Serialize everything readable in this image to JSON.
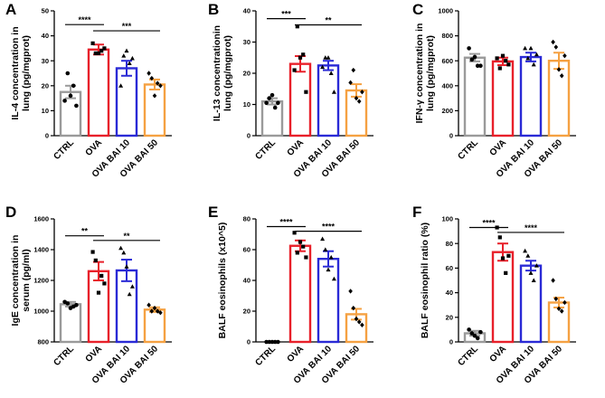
{
  "figure": {
    "categories": [
      "CTRL",
      "OVA",
      "OVA BAI 10",
      "OVA BAI 50"
    ],
    "colors": [
      "#9a9a9a",
      "#e8202a",
      "#2a2ad6",
      "#f5a142"
    ]
  },
  "chart_data": [
    {
      "letter": "A",
      "type": "bar",
      "title": "",
      "ylabel": "IL-4 concentration in lung (pg/mgprot)",
      "ylabel_lines": [
        "IL-4 concentration in",
        "lung (pg/mgprot)"
      ],
      "categories": [
        "CTRL",
        "OVA",
        "OVA BAI 10",
        "OVA BAI 50"
      ],
      "values": [
        17.5,
        34.5,
        27,
        20.5
      ],
      "errors": [
        2.5,
        2,
        3,
        2
      ],
      "points": [
        [
          14,
          25,
          16,
          20,
          12
        ],
        [
          37,
          33,
          33,
          34,
          35
        ],
        [
          20,
          32,
          34,
          29,
          31
        ],
        [
          25,
          23,
          16,
          21,
          20
        ]
      ],
      "yticks": [
        0,
        10,
        20,
        30,
        40,
        50
      ],
      "ylim": [
        0,
        50
      ],
      "significance": [
        {
          "from": 0,
          "to": 1,
          "label": "****",
          "y": 44.5
        },
        {
          "from": 1,
          "to": 3,
          "label": "***",
          "y": 42
        }
      ]
    },
    {
      "letter": "B",
      "type": "bar",
      "title": "",
      "ylabel": "IL-13 concentrationin lung (pg/mgprot)",
      "ylabel_lines": [
        "IL-13 concentrationin",
        "lung (pg/mgprot)"
      ],
      "categories": [
        "CTRL",
        "OVA",
        "OVA BAI 10",
        "OVA BAI 50"
      ],
      "values": [
        11,
        23,
        22.5,
        14.5
      ],
      "errors": [
        1,
        2.5,
        1.5,
        2
      ],
      "points": [
        [
          10.5,
          12,
          13,
          9,
          10.5
        ],
        [
          21,
          35,
          25,
          26,
          14
        ],
        [
          22,
          25,
          25,
          20,
          14
        ],
        [
          17,
          21,
          12,
          11,
          14
        ]
      ],
      "yticks": [
        0,
        10,
        20,
        30,
        40
      ],
      "ylim": [
        0,
        40
      ],
      "significance": [
        {
          "from": 0,
          "to": 1,
          "label": "***",
          "y": 37.5
        },
        {
          "from": 1,
          "to": 3,
          "label": "**",
          "y": 35.5
        }
      ]
    },
    {
      "letter": "C",
      "type": "bar",
      "title": "",
      "ylabel": "IFN-γ concentration in lung (pg/mgprot)",
      "ylabel_lines": [
        "IFN-γ concentration in",
        "lung (pg/mgprot)"
      ],
      "categories": [
        "CTRL",
        "OVA",
        "OVA BAI 10",
        "OVA BAI 50"
      ],
      "values": [
        625,
        595,
        630,
        600
      ],
      "errors": [
        30,
        30,
        35,
        65
      ],
      "points": [
        [
          700,
          610,
          630,
          560,
          560
        ],
        [
          620,
          540,
          640,
          600,
          570
        ],
        [
          700,
          620,
          700,
          570,
          650
        ],
        [
          750,
          710,
          530,
          480,
          640
        ]
      ],
      "yticks": [
        0,
        200,
        400,
        600,
        800,
        1000
      ],
      "ylim": [
        0,
        1000
      ],
      "significance": []
    },
    {
      "letter": "D",
      "type": "bar",
      "title": "",
      "ylabel": "IgE concentration in serum (pg/ml)",
      "ylabel_lines": [
        "IgE concentration in",
        "serum (pg/ml)"
      ],
      "categories": [
        "CTRL",
        "OVA",
        "OVA BAI 10",
        "OVA BAI 50"
      ],
      "values": [
        1045,
        1260,
        1265,
        1010
      ],
      "errors": [
        15,
        60,
        70,
        15
      ],
      "points": [
        [
          1060,
          1050,
          1020,
          1030,
          1040
        ],
        [
          1385,
          1330,
          1120,
          1230,
          1180
        ],
        [
          1410,
          1380,
          1290,
          1110,
          1160
        ],
        [
          1040,
          1000,
          1020,
          1000,
          990
        ]
      ],
      "yticks": [
        800,
        1000,
        1200,
        1400,
        1600
      ],
      "ylim": [
        800,
        1600
      ],
      "significance": [
        {
          "from": 0,
          "to": 1,
          "label": "**",
          "y": 1490
        },
        {
          "from": 1,
          "to": 3,
          "label": "**",
          "y": 1460
        }
      ]
    },
    {
      "letter": "E",
      "type": "bar",
      "title": "",
      "ylabel": "BALF eosinophils (x10^5)",
      "ylabel_lines": [
        "BALF eosinophils (x10^5)"
      ],
      "categories": [
        "CTRL",
        "OVA",
        "OVA BAI 10",
        "OVA BAI 50"
      ],
      "values": [
        0,
        62.5,
        54,
        18
      ],
      "errors": [
        0,
        3.5,
        5,
        3.5
      ],
      "points": [
        [
          0,
          0,
          0,
          0,
          0
        ],
        [
          71,
          58,
          65,
          62,
          55
        ],
        [
          67,
          60,
          47,
          55,
          41
        ],
        [
          33,
          22,
          15,
          13,
          11
        ]
      ],
      "yticks": [
        0,
        20,
        40,
        60,
        80
      ],
      "ylim": [
        0,
        80
      ],
      "significance": [
        {
          "from": 0,
          "to": 1,
          "label": "****",
          "y": 75
        },
        {
          "from": 1,
          "to": 3,
          "label": "****",
          "y": 72
        }
      ]
    },
    {
      "letter": "F",
      "type": "bar",
      "title": "",
      "ylabel": "BALF eosinophil ratio (%)",
      "ylabel_lines": [
        "BALF eosinophil ratio (%)"
      ],
      "categories": [
        "CTRL",
        "OVA",
        "OVA BAI 10",
        "OVA BAI 50"
      ],
      "values": [
        7,
        73,
        62,
        32
      ],
      "errors": [
        2,
        7,
        4,
        4
      ],
      "points": [
        [
          10,
          7,
          5,
          3,
          8
        ],
        [
          93,
          85,
          68,
          56,
          70
        ],
        [
          74,
          70,
          56,
          50,
          62
        ],
        [
          50,
          35,
          27,
          25,
          32
        ]
      ],
      "yticks": [
        0,
        20,
        40,
        60,
        80,
        100
      ],
      "ylim": [
        0,
        100
      ],
      "significance": [
        {
          "from": 0,
          "to": 1,
          "label": "****",
          "y": 93
        },
        {
          "from": 1,
          "to": 3,
          "label": "****",
          "y": 89
        }
      ]
    }
  ]
}
